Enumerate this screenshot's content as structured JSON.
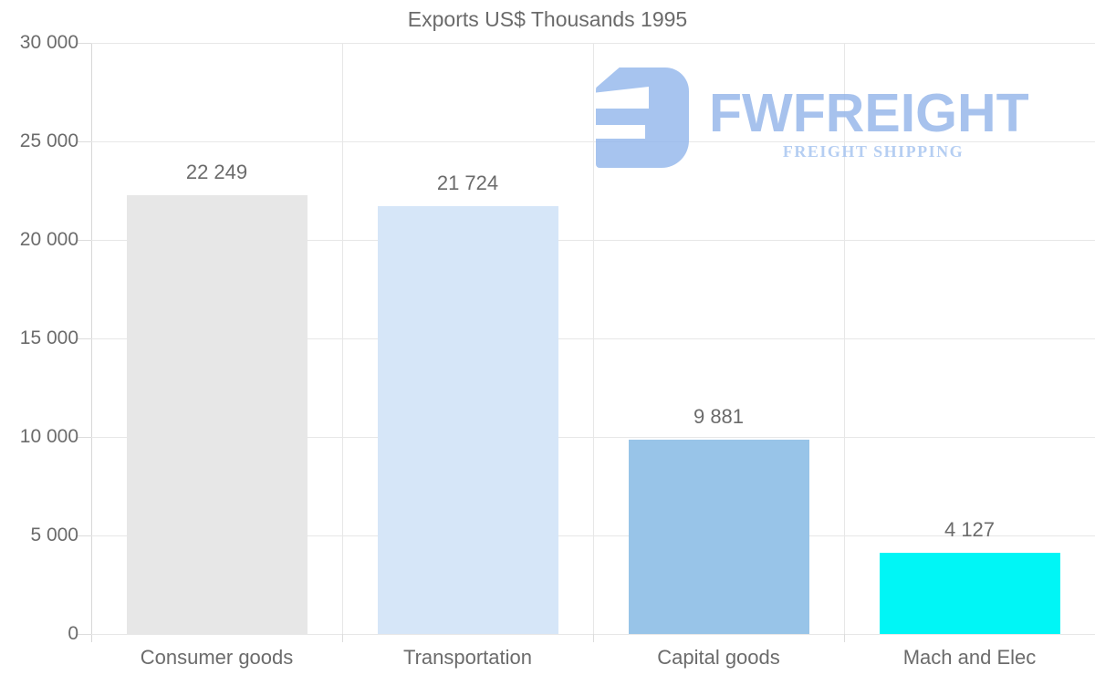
{
  "logo": {
    "name": "FWFREIGHT",
    "tagline": "FREIGHT SHIPPING",
    "color": "#a9c4ef"
  },
  "colors": {
    "text": "#6b6b6b",
    "gridline": "#e7e7e7",
    "axis_line": "#d8d8d8",
    "background": "#ffffff"
  },
  "chart_data": {
    "type": "bar",
    "title": "Exports US$ Thousands 1995",
    "categories": [
      "Consumer goods",
      "Transportation",
      "Capital goods",
      "Mach and Elec"
    ],
    "values": [
      22249,
      21724,
      9881,
      4127
    ],
    "value_labels": [
      "22 249",
      "21 724",
      "9 881",
      "4 127"
    ],
    "bar_colors": [
      "#e7e7e7",
      "#d6e6f8",
      "#98c4e8",
      "#00f6f6"
    ],
    "xlabel": "",
    "ylabel": "",
    "ylim": [
      0,
      30000
    ],
    "ytick_interval": 5000,
    "ytick_labels": [
      "0",
      "5 000",
      "10 000",
      "15 000",
      "20 000",
      "25 000",
      "30 000"
    ],
    "grid": true,
    "legend_position": "none"
  }
}
